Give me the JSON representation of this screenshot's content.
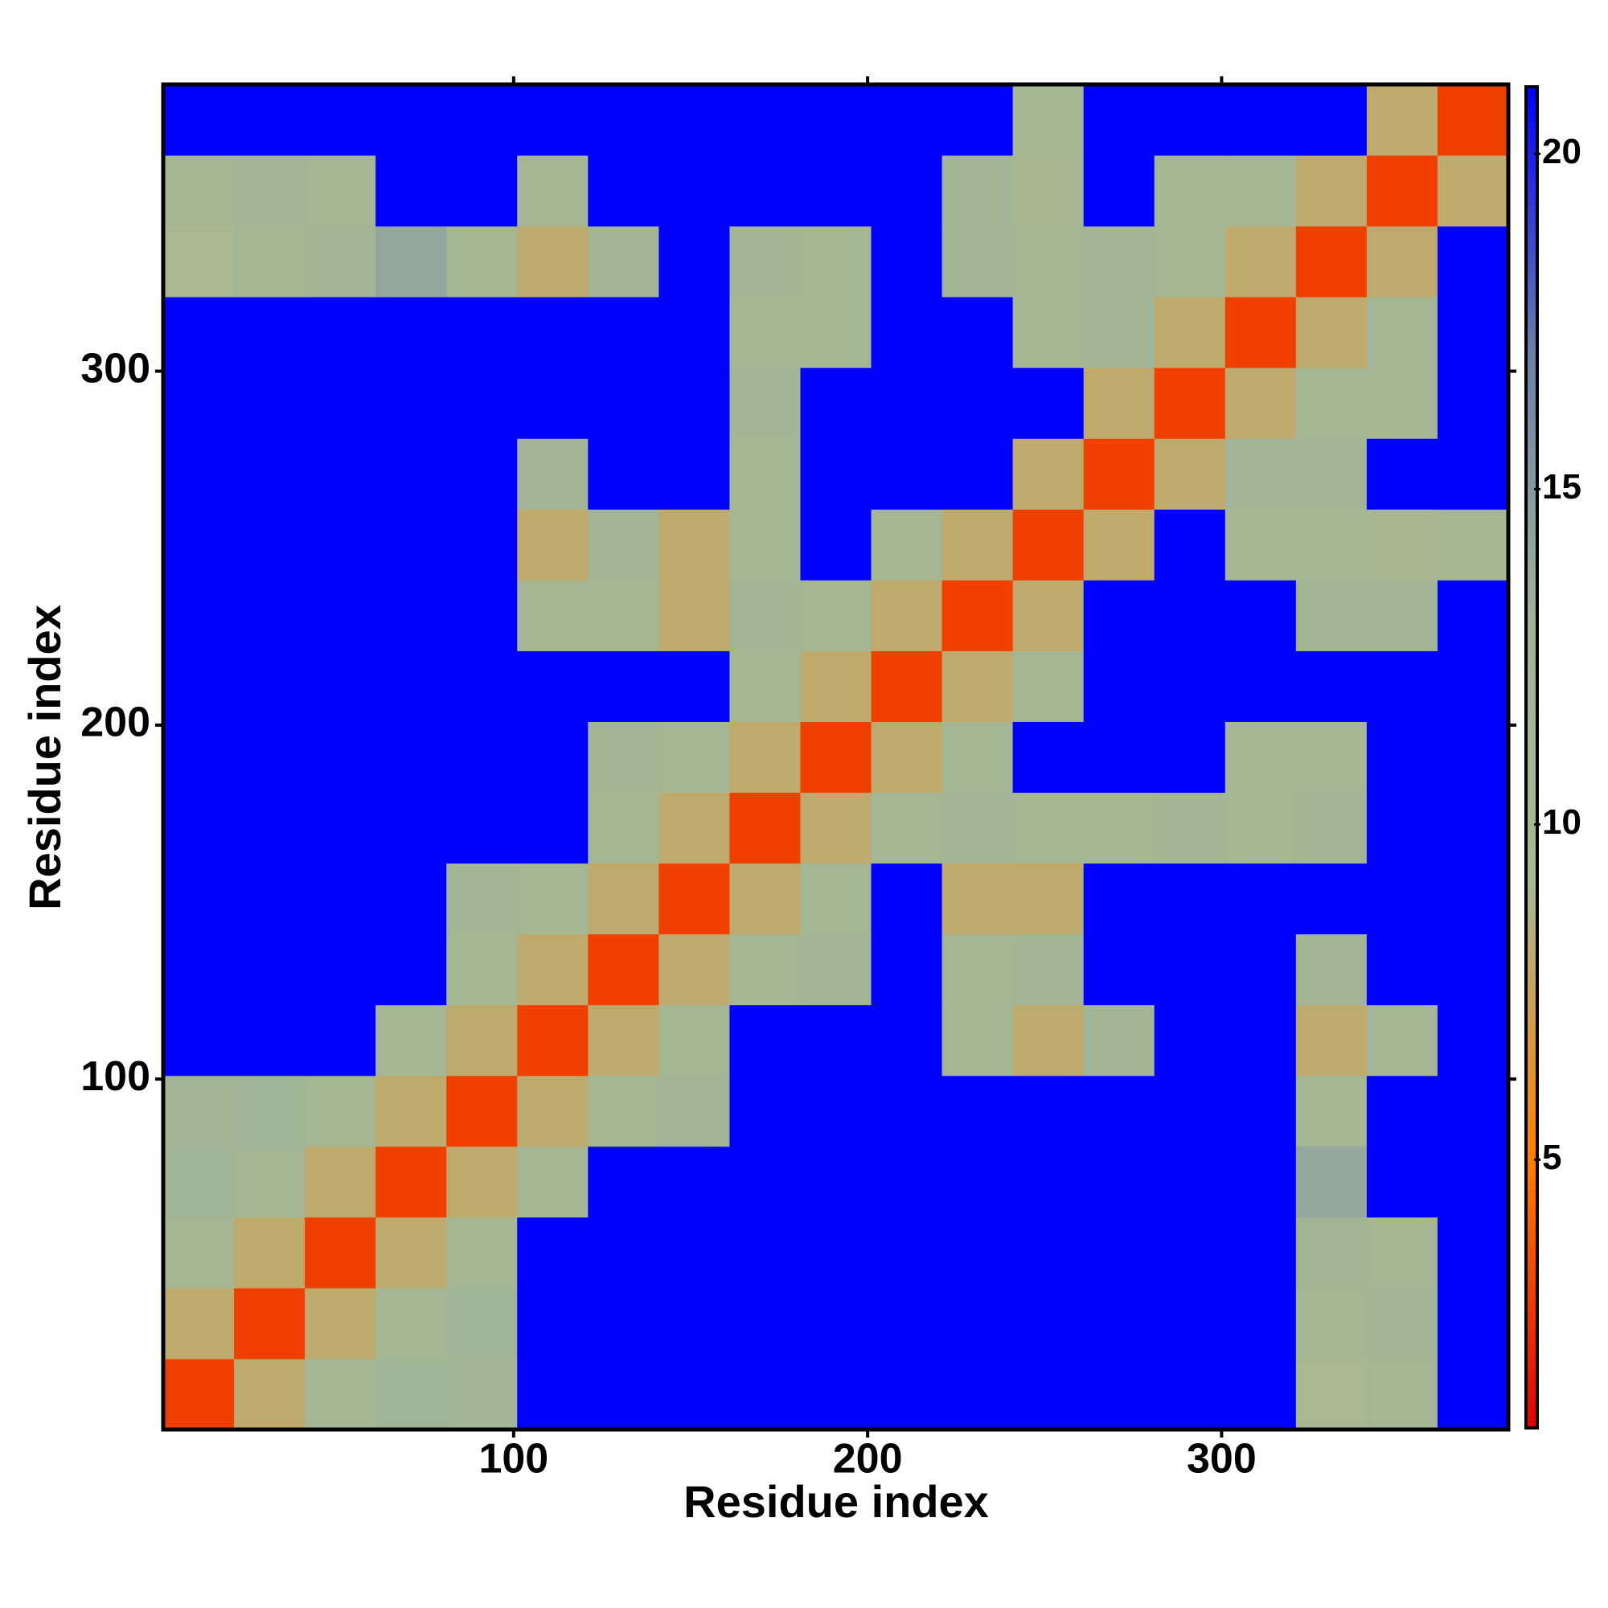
{
  "chart_data": {
    "type": "heatmap",
    "x_label": "Residue index",
    "y_label": "Residue index",
    "xbins": [
      1,
      21,
      41,
      61,
      81,
      101,
      121,
      141,
      161,
      181,
      201,
      221,
      241,
      261,
      281,
      301,
      321,
      341,
      361,
      381
    ],
    "ybins": [
      1,
      21,
      41,
      61,
      81,
      101,
      121,
      141,
      161,
      181,
      201,
      221,
      241,
      261,
      281,
      301,
      321,
      341,
      361,
      381
    ],
    "xlim": [
      1,
      381
    ],
    "ylim": [
      1,
      381
    ],
    "xticks": [
      100,
      200,
      300
    ],
    "yticks": [
      100,
      200,
      300
    ],
    "zlim": [
      1,
      21
    ],
    "zticks": [
      5,
      10,
      15,
      20
    ],
    "colorscale": [
      "#e00000",
      "#ff7f00",
      "#a8b890",
      "#a0b498",
      "#6a80a8",
      "#0000ff"
    ],
    "z": [
      [
        3,
        8,
        11,
        13,
        12,
        21,
        21,
        21,
        21,
        21,
        21,
        21,
        21,
        21,
        21,
        21,
        9,
        11,
        21
      ],
      [
        8,
        3,
        8,
        11,
        13,
        21,
        21,
        21,
        21,
        21,
        21,
        21,
        21,
        21,
        21,
        21,
        11,
        12,
        21
      ],
      [
        11,
        8,
        3,
        8,
        11,
        21,
        21,
        21,
        21,
        21,
        21,
        21,
        21,
        21,
        21,
        21,
        12,
        11,
        21
      ],
      [
        13,
        11,
        8,
        3,
        8,
        11,
        21,
        21,
        21,
        21,
        21,
        21,
        21,
        21,
        21,
        21,
        14,
        21,
        21
      ],
      [
        12,
        13,
        11,
        8,
        3,
        8,
        11,
        12,
        21,
        21,
        21,
        21,
        21,
        21,
        21,
        21,
        11,
        21,
        21
      ],
      [
        21,
        21,
        21,
        11,
        8,
        3,
        8,
        11,
        21,
        21,
        21,
        11,
        8,
        12,
        21,
        21,
        8,
        11,
        21
      ],
      [
        21,
        21,
        21,
        21,
        11,
        8,
        3,
        8,
        11,
        12,
        21,
        11,
        12,
        21,
        21,
        21,
        12,
        21,
        21
      ],
      [
        21,
        21,
        21,
        21,
        12,
        11,
        8,
        3,
        8,
        11,
        21,
        8,
        8,
        21,
        21,
        21,
        21,
        21,
        21
      ],
      [
        21,
        21,
        21,
        21,
        21,
        21,
        11,
        8,
        3,
        8,
        11,
        12,
        11,
        11,
        12,
        11,
        12,
        21,
        21
      ],
      [
        21,
        21,
        21,
        21,
        21,
        21,
        12,
        11,
        8,
        3,
        8,
        11,
        21,
        21,
        21,
        11,
        11,
        21,
        21
      ],
      [
        21,
        21,
        21,
        21,
        21,
        21,
        21,
        21,
        11,
        8,
        3,
        8,
        11,
        21,
        21,
        21,
        21,
        21,
        21
      ],
      [
        21,
        21,
        21,
        21,
        21,
        11,
        11,
        8,
        12,
        11,
        8,
        3,
        8,
        21,
        21,
        21,
        12,
        12,
        21
      ],
      [
        21,
        21,
        21,
        21,
        21,
        8,
        12,
        8,
        11,
        21,
        11,
        8,
        3,
        8,
        21,
        11,
        11,
        10,
        11
      ],
      [
        21,
        21,
        21,
        21,
        21,
        12,
        21,
        21,
        11,
        21,
        21,
        21,
        8,
        3,
        8,
        12,
        12,
        21,
        21
      ],
      [
        21,
        21,
        21,
        21,
        21,
        21,
        21,
        21,
        12,
        21,
        21,
        21,
        21,
        8,
        3,
        8,
        11,
        11,
        21
      ],
      [
        21,
        21,
        21,
        21,
        21,
        21,
        21,
        21,
        11,
        11,
        21,
        21,
        11,
        12,
        8,
        3,
        8,
        11,
        21
      ],
      [
        9,
        11,
        12,
        14,
        11,
        8,
        12,
        21,
        12,
        11,
        21,
        12,
        11,
        12,
        11,
        8,
        3,
        8,
        21
      ],
      [
        11,
        12,
        11,
        21,
        21,
        11,
        21,
        21,
        21,
        21,
        21,
        12,
        10,
        21,
        11,
        11,
        8,
        3,
        8
      ],
      [
        21,
        21,
        21,
        21,
        21,
        21,
        21,
        21,
        21,
        21,
        21,
        21,
        11,
        21,
        21,
        21,
        21,
        8,
        3
      ]
    ]
  }
}
